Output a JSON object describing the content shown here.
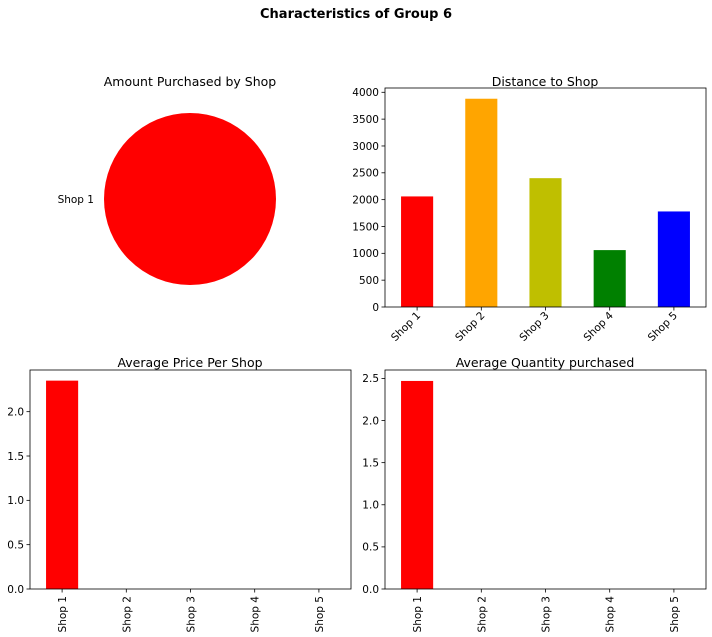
{
  "figure": {
    "title": "Characteristics of Group 6"
  },
  "chart_data": [
    {
      "id": "pie",
      "type": "pie",
      "title": "Amount Purchased by Shop",
      "labels": [
        "Shop 1"
      ],
      "values": [
        1
      ],
      "colors": [
        "#ff0000"
      ]
    },
    {
      "id": "distance",
      "type": "bar",
      "title": "Distance to Shop",
      "categories": [
        "Shop 1",
        "Shop 2",
        "Shop 3",
        "Shop 4",
        "Shop 5"
      ],
      "values": [
        2060,
        3880,
        2400,
        1060,
        1780
      ],
      "colors": [
        "#ff0000",
        "#ffa500",
        "#bfbf00",
        "#008000",
        "#0000ff"
      ],
      "ylim": [
        0,
        4080
      ],
      "yticks": [
        0,
        500,
        1000,
        1500,
        2000,
        2500,
        3000,
        3500,
        4000
      ],
      "xtick_rotation": 45
    },
    {
      "id": "price",
      "type": "bar",
      "title": "Average Price Per Shop",
      "categories": [
        "Shop 1",
        "Shop 2",
        "Shop 3",
        "Shop 4",
        "Shop 5"
      ],
      "values": [
        2.35,
        0,
        0,
        0,
        0
      ],
      "colors": [
        "#ff0000",
        "#ff0000",
        "#ff0000",
        "#ff0000",
        "#ff0000"
      ],
      "ylim": [
        0,
        2.47
      ],
      "yticks": [
        0.0,
        0.5,
        1.0,
        1.5,
        2.0
      ],
      "ytick_labels": [
        "0.0",
        "0.5",
        "1.0",
        "1.5",
        "2.0"
      ],
      "xtick_rotation": 90
    },
    {
      "id": "quantity",
      "type": "bar",
      "title": "Average Quantity purchased",
      "categories": [
        "Shop 1",
        "Shop 2",
        "Shop 3",
        "Shop 4",
        "Shop 5"
      ],
      "values": [
        2.47,
        0,
        0,
        0,
        0
      ],
      "colors": [
        "#ff0000",
        "#ff0000",
        "#ff0000",
        "#ff0000",
        "#ff0000"
      ],
      "ylim": [
        0,
        2.6
      ],
      "yticks": [
        0.0,
        0.5,
        1.0,
        1.5,
        2.0,
        2.5
      ],
      "ytick_labels": [
        "0.0",
        "0.5",
        "1.0",
        "1.5",
        "2.0",
        "2.5"
      ],
      "xtick_rotation": 90
    }
  ]
}
